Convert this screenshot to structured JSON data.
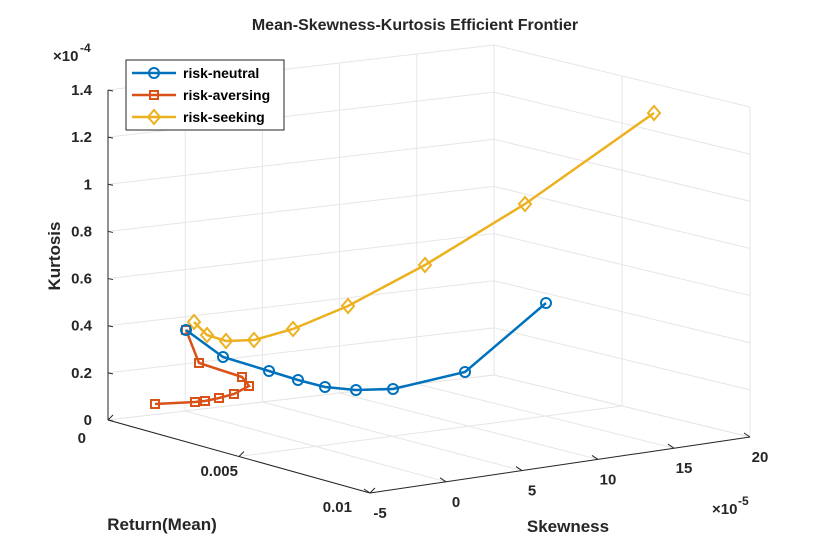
{
  "chart_data": {
    "type": "line3d",
    "title": "Mean-Skewness-Kurtosis Efficient Frontier",
    "xlabel": "Return(Mean)",
    "ylabel": "Skewness",
    "zlabel": "Kurtosis",
    "x_ticks": [
      "0",
      "0.005",
      "0.01"
    ],
    "y_ticks": [
      "-5",
      "0",
      "5",
      "10",
      "15",
      "20"
    ],
    "y_exponent": "×10",
    "y_exponent_power": "-5",
    "z_ticks": [
      "0",
      "0.2",
      "0.4",
      "0.6",
      "0.8",
      "1",
      "1.2",
      "1.4"
    ],
    "z_exponent": "×10",
    "z_exponent_power": "-4",
    "legend": "top-left",
    "series": [
      {
        "name": "risk-neutral",
        "color": "#0072BD",
        "marker": "circle",
        "screen_pts": [
          [
            186,
            330
          ],
          [
            223,
            357
          ],
          [
            269,
            371
          ],
          [
            298,
            380
          ],
          [
            325,
            387
          ],
          [
            356,
            390
          ],
          [
            393,
            389
          ],
          [
            465,
            372
          ],
          [
            546,
            303
          ]
        ]
      },
      {
        "name": "risk-aversing",
        "color": "#D95319",
        "marker": "square",
        "screen_pts": [
          [
            186,
            330
          ],
          [
            199,
            363
          ],
          [
            242,
            377
          ],
          [
            249,
            386
          ],
          [
            234,
            394
          ],
          [
            219,
            398
          ],
          [
            205,
            401
          ],
          [
            195,
            402
          ],
          [
            155,
            404
          ]
        ]
      },
      {
        "name": "risk-seeking",
        "color": "#EDB120",
        "marker": "diamond",
        "screen_pts": [
          [
            194,
            322
          ],
          [
            207,
            335
          ],
          [
            226,
            341
          ],
          [
            254,
            340
          ],
          [
            293,
            329
          ],
          [
            348,
            306
          ],
          [
            425,
            265
          ],
          [
            525,
            204
          ],
          [
            654,
            113
          ]
        ]
      }
    ]
  }
}
